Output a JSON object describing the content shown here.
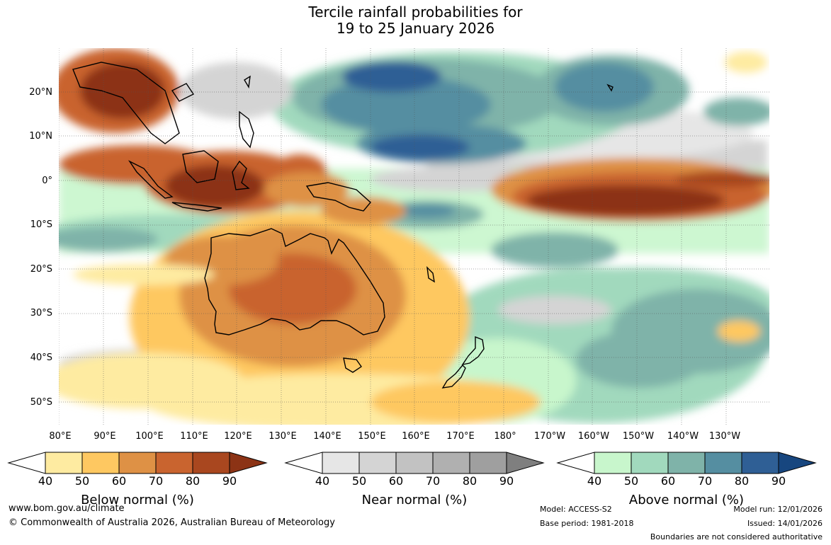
{
  "title": {
    "line1": "Tercile rainfall probabilities for",
    "line2": "19 to 25 January 2026"
  },
  "axes": {
    "lat_labels": [
      "20°N",
      "10°N",
      "0°",
      "10°S",
      "20°S",
      "30°S",
      "40°S",
      "50°S"
    ],
    "lon_labels": [
      "80°E",
      "90°E",
      "100°E",
      "110°E",
      "120°E",
      "130°E",
      "140°E",
      "150°E",
      "160°E",
      "170°E",
      "180°",
      "170°W",
      "160°W",
      "150°W",
      "140°W",
      "130°W"
    ]
  },
  "colorbars": [
    {
      "key": "below",
      "title": "Below normal (%)",
      "ticks": [
        "40",
        "50",
        "60",
        "70",
        "80",
        "90"
      ],
      "colors": [
        "#ffffff",
        "#feeba1",
        "#fec861",
        "#de9145",
        "#c9642f",
        "#a9471f",
        "#8c3315"
      ]
    },
    {
      "key": "near",
      "title": "Near normal (%)",
      "ticks": [
        "40",
        "50",
        "60",
        "70",
        "80",
        "90"
      ],
      "colors": [
        "#ffffff",
        "#e6e6e6",
        "#d4d4d4",
        "#c2c2c2",
        "#b0b0b0",
        "#9f9f9f",
        "#7f7f7f"
      ]
    },
    {
      "key": "above",
      "title": "Above normal (%)",
      "ticks": [
        "40",
        "50",
        "60",
        "70",
        "80",
        "90"
      ],
      "colors": [
        "#ffffff",
        "#c8f6cc",
        "#a1d9bd",
        "#7fb3a9",
        "#558ea1",
        "#2f5f95",
        "#17467f"
      ]
    }
  ],
  "footer": {
    "url": "www.bom.gov.au/climate",
    "copyright": "© Commonwealth of Australia 2026, Australian Bureau of Meteorology",
    "model": "Model: ACCESS-S2",
    "base_period": "Base period: 1981-2018",
    "model_run": "Model run: 12/01/2026",
    "issued": "Issued: 14/01/2026",
    "disclaimer": "Boundaries are not considered authoritative"
  }
}
